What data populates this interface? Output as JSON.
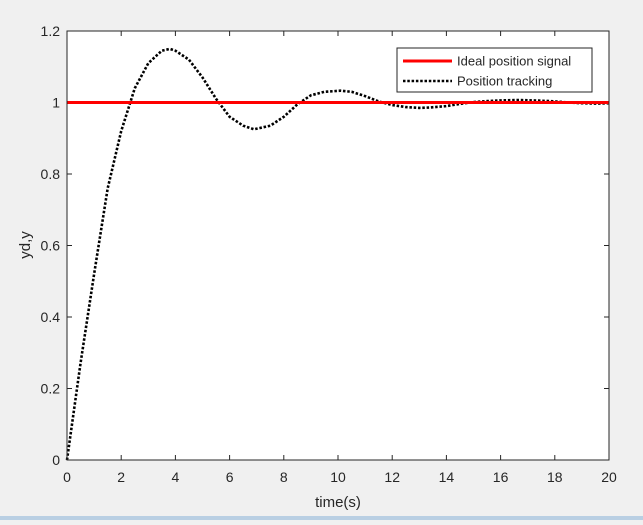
{
  "chart_data": {
    "type": "line",
    "title": "",
    "xlabel": "time(s)",
    "ylabel": "yd,y",
    "xlim": [
      0,
      20
    ],
    "ylim": [
      0,
      1.2
    ],
    "x_ticks": [
      0,
      2,
      4,
      6,
      8,
      10,
      12,
      14,
      16,
      18,
      20
    ],
    "x_tick_labels": [
      "0",
      "2",
      "4",
      "6",
      "8",
      "10",
      "12",
      "14",
      "16",
      "18",
      "20"
    ],
    "y_ticks": [
      0,
      0.2,
      0.4,
      0.6,
      0.8,
      1,
      1.2
    ],
    "y_tick_labels": [
      "0",
      "0.2",
      "0.4",
      "0.6",
      "0.8",
      "1",
      "1.2"
    ],
    "grid": false,
    "legend_position": "top-right",
    "series": [
      {
        "name": "Ideal position signal",
        "color": "#ff0000",
        "style": "solid",
        "x": [
          0,
          20
        ],
        "y": [
          1,
          1
        ]
      },
      {
        "name": "Position tracking",
        "color": "#000000",
        "style": "dotted",
        "x": [
          0,
          0.5,
          1,
          1.5,
          2,
          2.5,
          3,
          3.5,
          3.8,
          4,
          4.5,
          5,
          5.5,
          6,
          6.5,
          6.9,
          7.5,
          8,
          8.5,
          9,
          9.5,
          10.1,
          10.5,
          11,
          11.5,
          12,
          12.5,
          13,
          13.4,
          14,
          14.5,
          15,
          15.5,
          16,
          16.7,
          17.5,
          18,
          18.5,
          19,
          19.5,
          20
        ],
        "y": [
          0,
          0.27,
          0.52,
          0.76,
          0.92,
          1.04,
          1.11,
          1.145,
          1.15,
          1.145,
          1.12,
          1.07,
          1.01,
          0.96,
          0.935,
          0.925,
          0.935,
          0.96,
          0.995,
          1.02,
          1.03,
          1.033,
          1.03,
          1.018,
          1.003,
          0.993,
          0.987,
          0.985,
          0.986,
          0.99,
          0.996,
          1.001,
          1.004,
          1.006,
          1.007,
          1.005,
          1.003,
          1.0,
          0.998,
          0.997,
          0.998
        ]
      }
    ]
  }
}
